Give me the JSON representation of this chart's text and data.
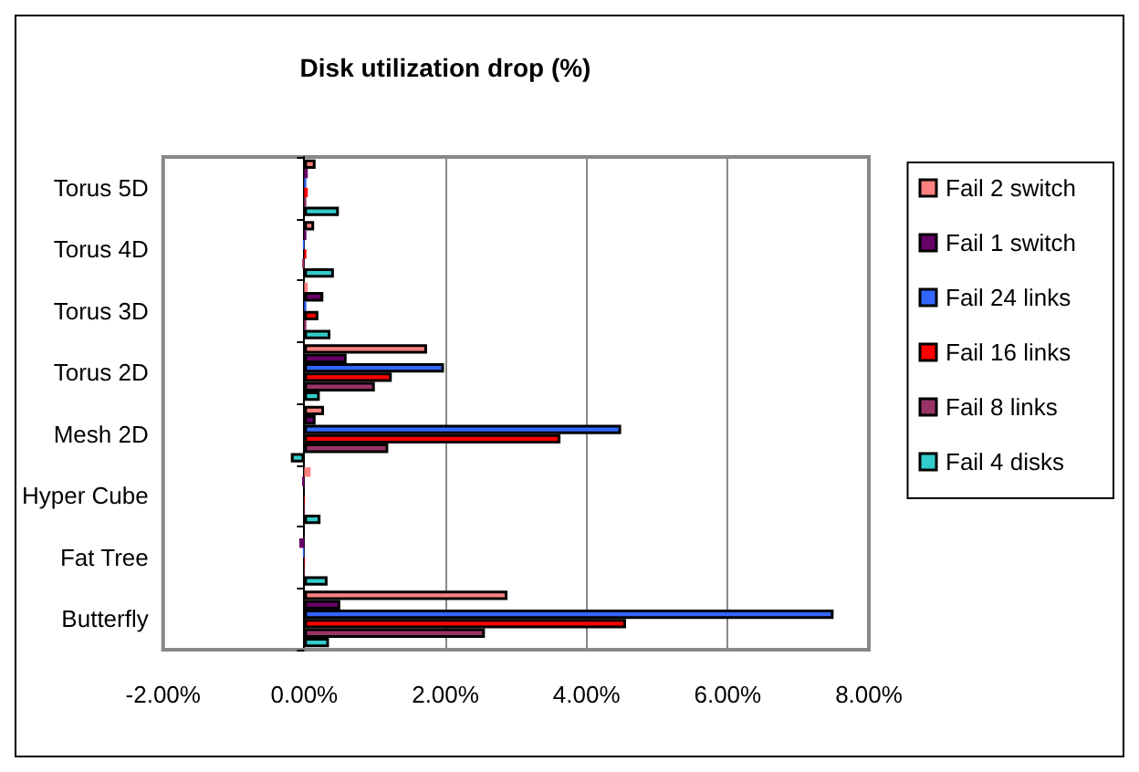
{
  "chart_data": {
    "type": "bar",
    "orientation": "horizontal",
    "title": "Disk utilization drop (%)",
    "categories": [
      "Torus 5D",
      "Torus 4D",
      "Torus 3D",
      "Torus 2D",
      "Mesh 2D",
      "Hyper Cube",
      "Fat Tree",
      "Butterfly"
    ],
    "series": [
      {
        "name": "Fail 2 switch",
        "color": "#ff8080",
        "values": [
          0.16,
          0.14,
          0.05,
          1.74,
          0.28,
          0.09,
          0.0,
          2.88
        ]
      },
      {
        "name": "Fail 1 switch",
        "color": "#660066",
        "values": [
          0.05,
          0.03,
          0.27,
          0.6,
          0.16,
          -0.03,
          -0.07,
          0.51
        ]
      },
      {
        "name": "Fail 24 links",
        "color": "#3366ff",
        "values": [
          0.03,
          -0.02,
          0.03,
          1.98,
          4.49,
          0.0,
          -0.02,
          7.5
        ]
      },
      {
        "name": "Fail 16 links",
        "color": "#ff0000",
        "values": [
          0.05,
          0.03,
          0.2,
          1.24,
          3.63,
          0.01,
          0.01,
          4.56
        ]
      },
      {
        "name": "Fail 8 links",
        "color": "#993366",
        "values": [
          0.03,
          -0.03,
          0.03,
          1.0,
          1.19,
          0.01,
          0.01,
          2.56
        ]
      },
      {
        "name": "Fail 4 disks",
        "color": "#33cccc",
        "values": [
          0.49,
          0.42,
          0.37,
          0.22,
          -0.19,
          0.23,
          0.33,
          0.35
        ]
      }
    ],
    "xlim": [
      -2,
      8
    ],
    "xticks": [
      {
        "value": -2,
        "label": "-2.00%"
      },
      {
        "value": 0,
        "label": "0.00%"
      },
      {
        "value": 2,
        "label": "2.00%"
      },
      {
        "value": 4,
        "label": "4.00%"
      },
      {
        "value": 6,
        "label": "6.00%"
      },
      {
        "value": 8,
        "label": "8.00%"
      }
    ],
    "grid": "x",
    "legend": "right"
  }
}
